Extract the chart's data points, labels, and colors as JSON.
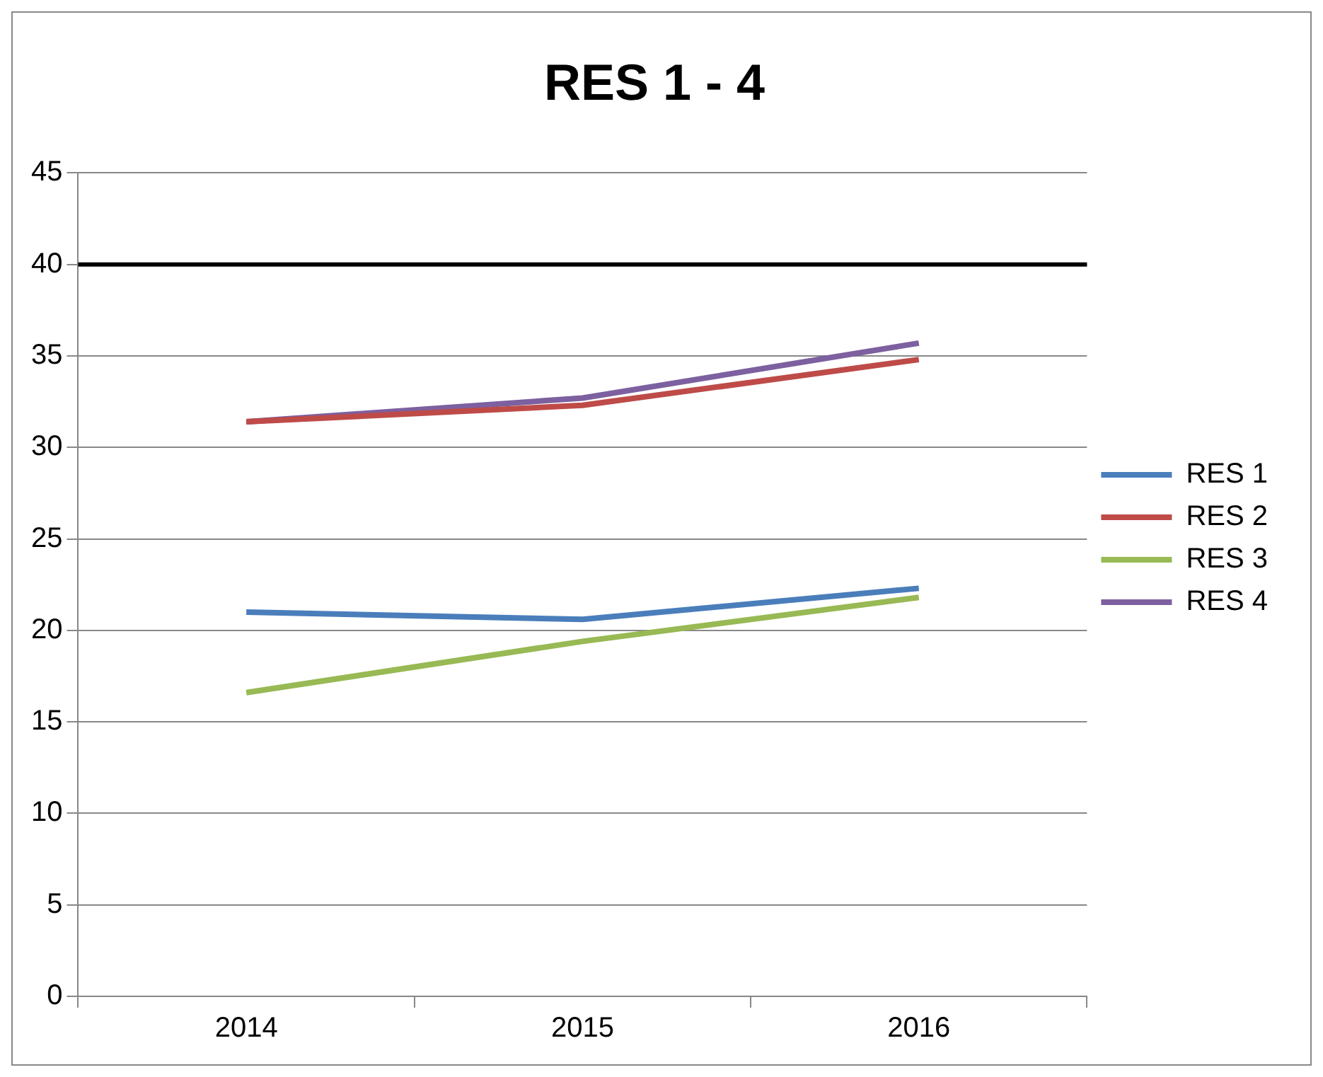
{
  "chart_data": {
    "type": "line",
    "title": "RES 1 - 4",
    "categories": [
      "2014",
      "2015",
      "2016"
    ],
    "series": [
      {
        "name": "RES 1",
        "color": "#4a7ebb",
        "values": [
          21.0,
          20.6,
          22.3
        ]
      },
      {
        "name": "RES 2",
        "color": "#be4b48",
        "values": [
          31.4,
          32.3,
          34.8
        ]
      },
      {
        "name": "RES 3",
        "color": "#98b954",
        "values": [
          16.6,
          19.4,
          21.8
        ]
      },
      {
        "name": "RES 4",
        "color": "#7d60a0",
        "values": [
          31.4,
          32.7,
          35.7
        ]
      }
    ],
    "ylim": [
      0,
      45
    ],
    "yticks": [
      0,
      5,
      10,
      15,
      20,
      25,
      30,
      35,
      40,
      45
    ],
    "grid": "y",
    "legend": "right",
    "marker": "none",
    "line_style": "solid",
    "ref_lines": [
      {
        "axis": "y",
        "value": 40,
        "color": "#000000"
      }
    ]
  }
}
